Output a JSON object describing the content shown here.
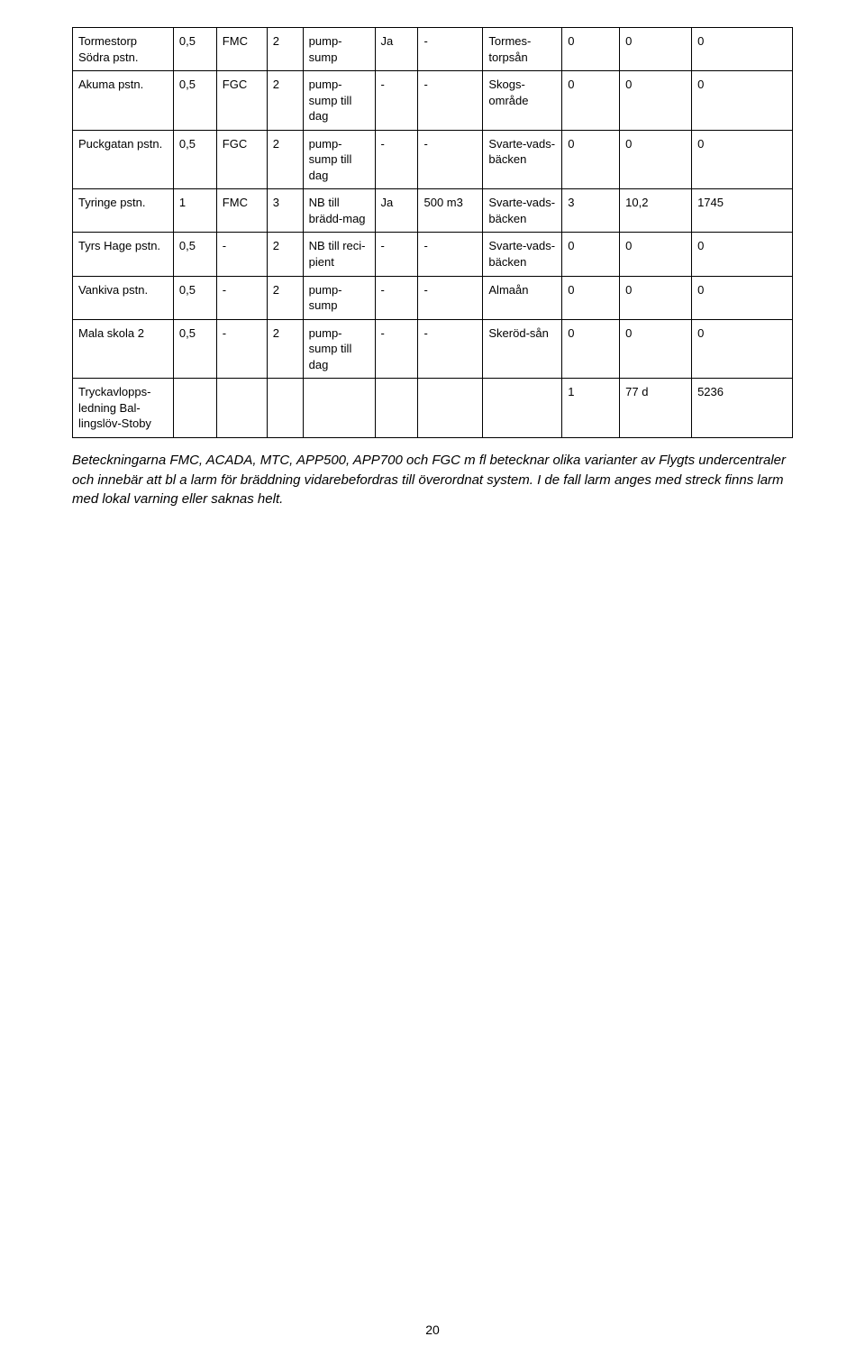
{
  "table": {
    "type": "table",
    "border_color": "#000000",
    "background_color": "#ffffff",
    "font_size_pt": 10,
    "rows": [
      [
        "Tormestorp Södra pstn.",
        "0,5",
        "FMC",
        "2",
        "pump-sump",
        "Ja",
        "-",
        "Tormes-torpsån",
        "0",
        "0",
        "0"
      ],
      [
        "Akuma pstn.",
        "0,5",
        "FGC",
        "2",
        "pump-sump till dag",
        "-",
        "-",
        "Skogs-område",
        "0",
        "0",
        "0"
      ],
      [
        "Puckgatan pstn.",
        "0,5",
        "FGC",
        "2",
        "pump-sump till dag",
        "-",
        "-",
        "Svarte-vads-bäcken",
        "0",
        "0",
        "0"
      ],
      [
        "Tyringe pstn.",
        "1",
        "FMC",
        "3",
        "NB till brädd-mag",
        "Ja",
        "500 m3",
        "Svarte-vads-bäcken",
        "3",
        "10,2",
        "1745"
      ],
      [
        "Tyrs Hage pstn.",
        "0,5",
        "-",
        "2",
        "NB till reci-pient",
        "-",
        "-",
        "Svarte-vads-bäcken",
        "0",
        "0",
        "0"
      ],
      [
        "Vankiva pstn.",
        "0,5",
        "-",
        "2",
        "pump-sump",
        "-",
        "-",
        "Almaån",
        "0",
        "0",
        "0"
      ],
      [
        "Mala skola 2",
        "0,5",
        "-",
        "2",
        "pump-sump till dag",
        "-",
        "-",
        "Skeröd-sån",
        "0",
        "0",
        "0"
      ],
      [
        "Tryckavlopps-ledning Bal-lingslöv-Stoby",
        "",
        "",
        "",
        "",
        "",
        "",
        "",
        "1",
        "77 d",
        "5236"
      ]
    ]
  },
  "caption": "Beteckningarna FMC, ACADA, MTC, APP500, APP700 och FGC m fl betecknar olika varianter av Flygts undercentraler och innebär att bl a larm för bräddning vidarebefordras till överordnat system. I de fall larm anges med streck finns larm med lokal varning eller saknas helt.",
  "page_number": "20"
}
